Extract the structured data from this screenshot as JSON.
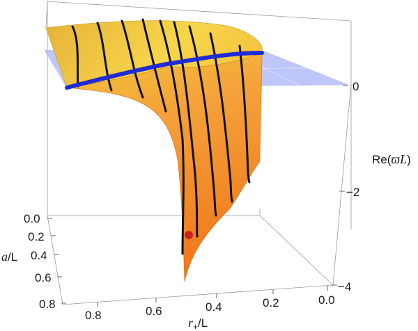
{
  "chart_data": {
    "type": "surface3d",
    "title": "",
    "xlabel": "r+/L",
    "xlabel_main": "r",
    "xlabel_sub": "+",
    "xlabel_tail": "/L",
    "ylabel": "a/L",
    "ylabel_main": "a",
    "ylabel_tail": "/L",
    "zlabel": "Re(ϖL)",
    "zlabel_prefix": "Re(",
    "zlabel_mid": "ϖL",
    "zlabel_suffix": ")",
    "xlim": [
      0.0,
      0.9
    ],
    "ylim": [
      0.0,
      0.8
    ],
    "zlim": [
      -4.2,
      0.8
    ],
    "x_ticks": [
      "0.8",
      "0.6",
      "0.4",
      "0.2",
      "0.0"
    ],
    "y_ticks": [
      "0.0",
      "0.2",
      "0.4",
      "0.6",
      "0.8"
    ],
    "z_ticks": [
      "0",
      "−2",
      "−4"
    ],
    "surface_color_top": "#f3c93a",
    "surface_color_bottom": "#f07a1c",
    "zero_plane_color": "#9aa6f5",
    "blue_curve_color": "#1f2bd6",
    "black_curve_color": "#111111",
    "marker_color": "#cc1f1f",
    "zero_plane_level": 0,
    "series": [
      {
        "kind": "blue-curve-on-zero-plane",
        "points": [
          [
            0.88,
            0.05,
            0.0
          ],
          [
            0.7,
            0.08,
            0.0
          ],
          [
            0.5,
            0.12,
            0.0
          ],
          [
            0.3,
            0.2,
            0.0
          ],
          [
            0.1,
            0.32,
            0.0
          ]
        ]
      },
      {
        "kind": "red-marker",
        "points": [
          [
            0.5,
            0.25,
            -3.0
          ]
        ]
      }
    ]
  }
}
